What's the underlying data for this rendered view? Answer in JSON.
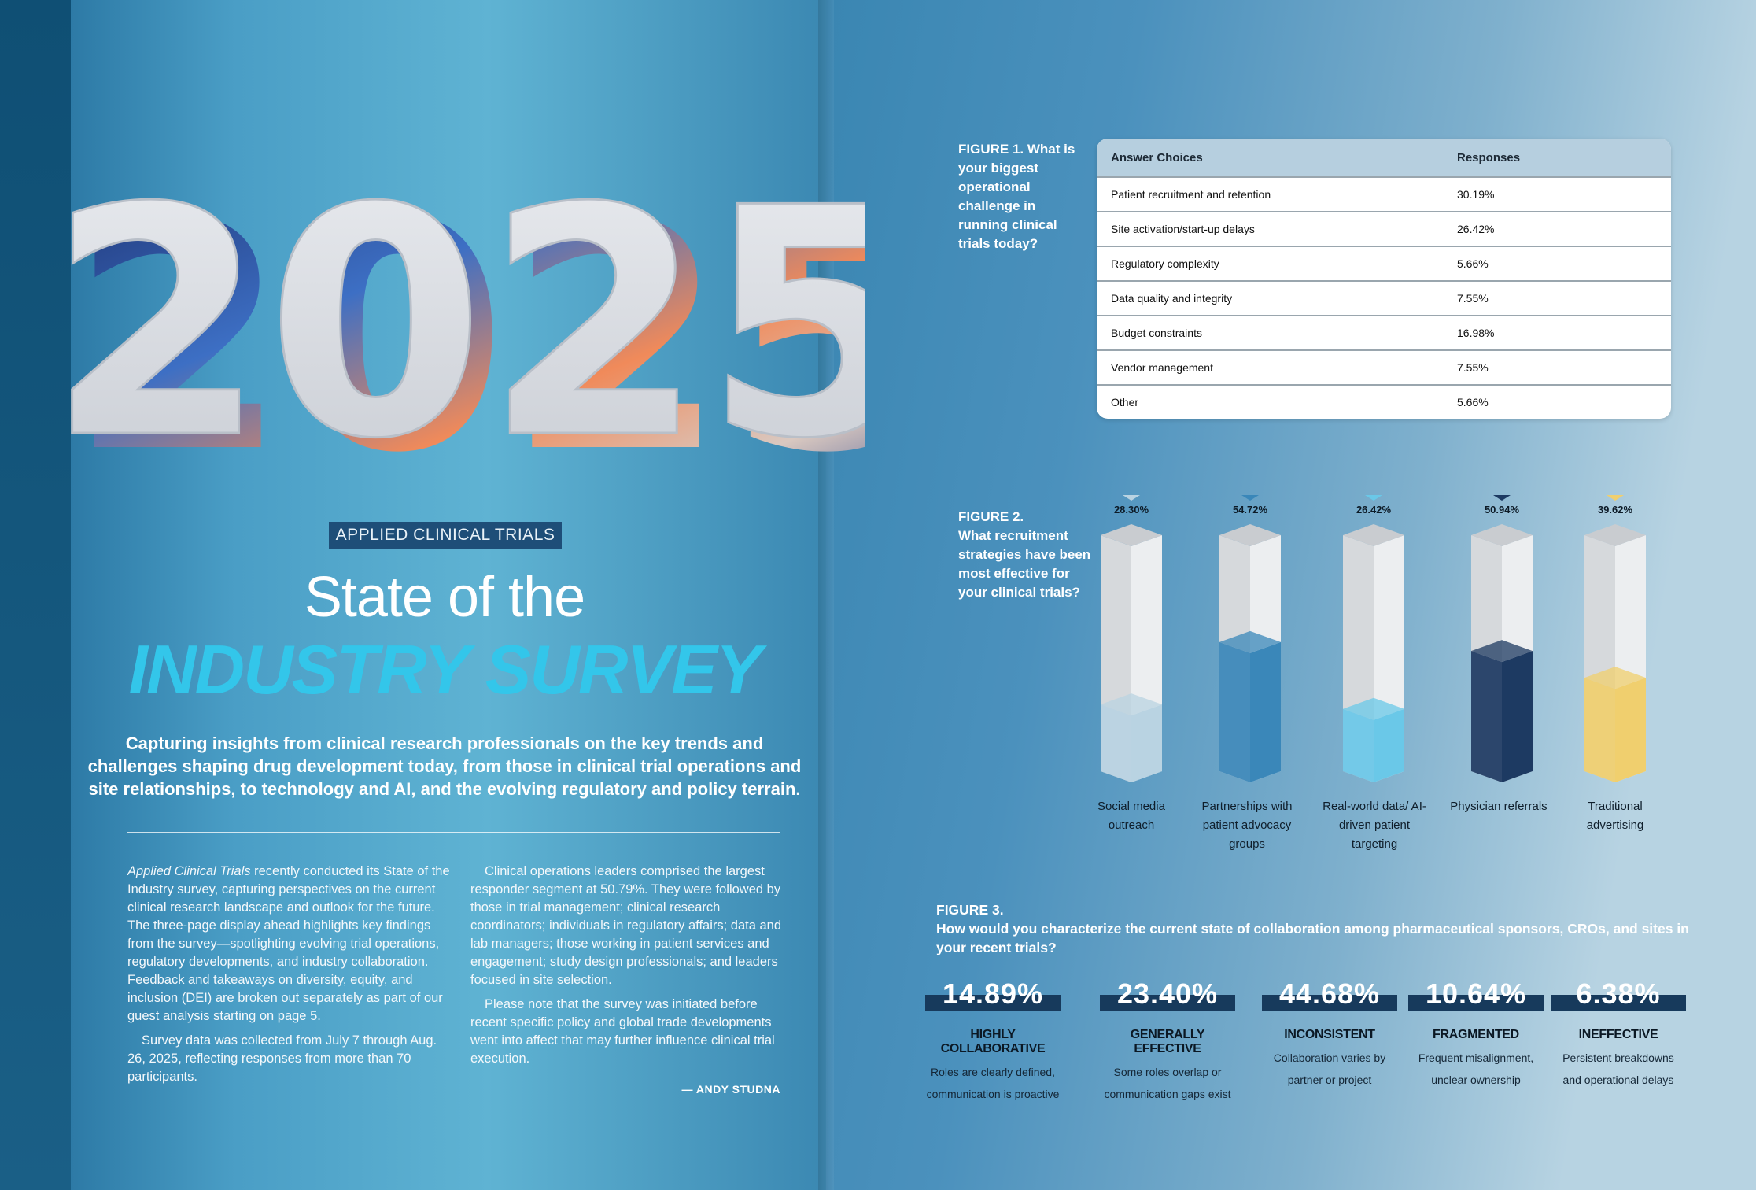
{
  "year": "2025",
  "publication_tag": "APPLIED CLINICAL TRIALS",
  "title_line1": "State of the",
  "title_line2": "INDUSTRY SURVEY",
  "lede": "Capturing insights from clinical research professionals on the key trends and challenges shaping drug development today, from those in clinical trial operations and site relationships, to technology and AI, and the evolving regulatory and policy terrain.",
  "article": {
    "col1_p1_italic": "Applied Clinical Trials",
    "col1_p1_rest": " recently conducted its State of the Industry survey, capturing perspectives on the current clinical research landscape and outlook for the future. The three-page display ahead highlights key findings from the survey—spotlighting evolving  trial operations, regulatory developments, and industry collaboration. Feedback and takeaways on diversity, equity, and inclusion (DEI) are broken out separately as part of our guest analysis starting on page 5.",
    "col1_p2": "Survey data was collected from July 7 through Aug. 26, 2025, reflecting responses from more than 70 participants.",
    "col2_p1": "Clinical operations leaders comprised the largest responder segment at 50.79%. They were followed by those in trial management; clinical research coordinators; individuals in regulatory affairs; data and lab managers; those working in patient services and engagement; study design professionals; and leaders focused in site selection.",
    "col2_p2": "Please note that the survey was initiated before recent specific policy and global trade developments went into affect that may further influence clinical trial execution.",
    "byline": "— ANDY STUDNA"
  },
  "figure1": {
    "label": "FIGURE 1.",
    "question": " What is your biggest operational challenge in running clinical trials today?",
    "col_answer": "Answer Choices",
    "col_response": "Responses",
    "rows": [
      {
        "answer": "Patient recruitment and retention",
        "response": "30.19%"
      },
      {
        "answer": "Site activation/start-up delays",
        "response": "26.42%"
      },
      {
        "answer": "Regulatory complexity",
        "response": "5.66%"
      },
      {
        "answer": "Data quality and integrity",
        "response": "7.55%"
      },
      {
        "answer": "Budget constraints",
        "response": "16.98%"
      },
      {
        "answer": "Vendor management",
        "response": "7.55%"
      },
      {
        "answer": "Other",
        "response": "5.66%"
      }
    ]
  },
  "figure2": {
    "label": "FIGURE 2.",
    "question": "What recruitment strategies have been most effective for your clinical trials?",
    "labels": [
      "Social media outreach",
      "Partnerships with patient advocacy groups",
      "Real-world data/ AI-driven patient targeting",
      "Physician referrals",
      "Traditional advertising"
    ]
  },
  "chart_data": {
    "type": "bar",
    "title": "What recruitment strategies have been most effective for your clinical trials?",
    "categories": [
      "Social media outreach",
      "Partnerships with patient advocacy groups",
      "Real-world data/ AI-driven patient targeting",
      "Physician referrals",
      "Traditional advertising"
    ],
    "values": [
      28.3,
      54.72,
      26.42,
      50.94,
      39.62
    ],
    "value_labels": [
      "28.30%",
      "54.72%",
      "26.42%",
      "50.94%",
      "39.62%"
    ],
    "colors": [
      "#b9d3e2",
      "#3a87b9",
      "#6ac8e8",
      "#1d3a62",
      "#f0cf6e"
    ],
    "ylim": [
      0,
      100
    ]
  },
  "figure3": {
    "label": "FIGURE 3.",
    "question": "How would you characterize the current state of collaboration among pharmaceutical sponsors, CROs, and sites in your recent trials?",
    "items": [
      {
        "pct": "14.89%",
        "head": "HIGHLY COLLABORATIVE",
        "desc1": "Roles are clearly defined,",
        "desc2": "communication  is proactive"
      },
      {
        "pct": "23.40%",
        "head": "GENERALLY EFFECTIVE",
        "desc1": "Some roles overlap or",
        "desc2": "communication gaps exist"
      },
      {
        "pct": "44.68%",
        "head": "INCONSISTENT",
        "desc1": "Collaboration varies by",
        "desc2": "partner or project"
      },
      {
        "pct": "10.64%",
        "head": "FRAGMENTED",
        "desc1": "Frequent misalignment,",
        "desc2": "unclear ownership"
      },
      {
        "pct": "6.38%",
        "head": "INEFFECTIVE",
        "desc1": "Persistent breakdowns",
        "desc2": "and operational delays"
      }
    ]
  }
}
